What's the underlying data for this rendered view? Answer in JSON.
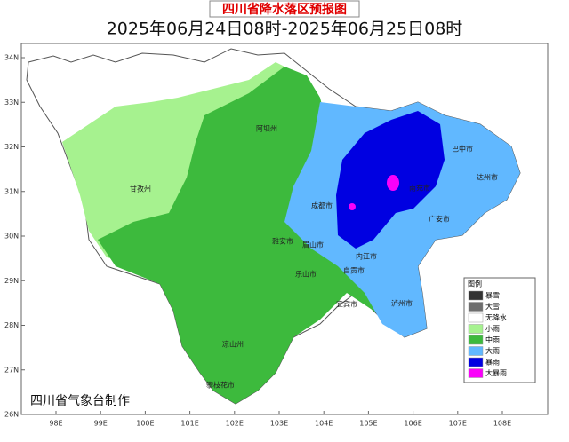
{
  "header": {
    "title": "四川省降水落区预报图",
    "subtitle": "2025年06月24日08时-2025年06月25日08时"
  },
  "map": {
    "lat_ticks": [
      {
        "value": 34,
        "label": "34N"
      },
      {
        "value": 33,
        "label": "33N"
      },
      {
        "value": 32,
        "label": "32N"
      },
      {
        "value": 31,
        "label": "31N"
      },
      {
        "value": 30,
        "label": "30N"
      },
      {
        "value": 29,
        "label": "29N"
      },
      {
        "value": 28,
        "label": "28N"
      },
      {
        "value": 27,
        "label": "27N"
      },
      {
        "value": 26,
        "label": "26N"
      }
    ],
    "lon_ticks": [
      {
        "value": 98,
        "label": "98E"
      },
      {
        "value": 99,
        "label": "99E"
      },
      {
        "value": 100,
        "label": "100E"
      },
      {
        "value": 101,
        "label": "101E"
      },
      {
        "value": 102,
        "label": "102E"
      },
      {
        "value": 103,
        "label": "103E"
      },
      {
        "value": 104,
        "label": "104E"
      },
      {
        "value": 105,
        "label": "105E"
      },
      {
        "value": 106,
        "label": "106E"
      },
      {
        "value": 107,
        "label": "107E"
      },
      {
        "value": 108,
        "label": "108E"
      }
    ],
    "places": [
      "阿坝州",
      "甘孜州",
      "成都市",
      "雅安市",
      "乐山市",
      "凉山州",
      "攀枝花市",
      "巴中市",
      "达州市",
      "广安市",
      "内江市",
      "宜宾市",
      "泸州市",
      "南充市",
      "眉山市",
      "自贡市"
    ]
  },
  "legend": {
    "title": "图例",
    "items": [
      {
        "name": "暴雪",
        "color": "#333333"
      },
      {
        "name": "大雪",
        "color": "#6e6e6e"
      },
      {
        "name": "无降水",
        "color": "#ffffff"
      },
      {
        "name": "小雨",
        "color": "#a6f28f"
      },
      {
        "name": "中雨",
        "color": "#3dba3d"
      },
      {
        "name": "大雨",
        "color": "#61b8ff"
      },
      {
        "name": "暴雨",
        "color": "#0000e1"
      },
      {
        "name": "大暴雨",
        "color": "#fa00fa"
      }
    ]
  },
  "credit": "四川省气象台制作"
}
